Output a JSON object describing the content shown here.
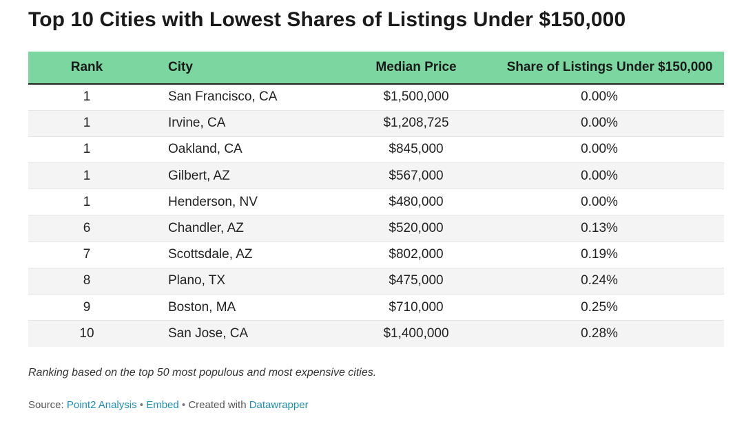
{
  "title": "Top 10 Cities with Lowest Shares of Listings Under $150,000",
  "columns": {
    "rank": "Rank",
    "city": "City",
    "price": "Median Price",
    "share": "Share of Listings Under $150,000"
  },
  "rows": [
    {
      "rank": "1",
      "city": "San Francisco, CA",
      "price": "$1,500,000",
      "share": "0.00%"
    },
    {
      "rank": "1",
      "city": "Irvine, CA",
      "price": "$1,208,725",
      "share": "0.00%"
    },
    {
      "rank": "1",
      "city": "Oakland, CA",
      "price": "$845,000",
      "share": "0.00%"
    },
    {
      "rank": "1",
      "city": "Gilbert, AZ",
      "price": "$567,000",
      "share": "0.00%"
    },
    {
      "rank": "1",
      "city": "Henderson, NV",
      "price": "$480,000",
      "share": "0.00%"
    },
    {
      "rank": "6",
      "city": "Chandler, AZ",
      "price": "$520,000",
      "share": "0.13%"
    },
    {
      "rank": "7",
      "city": "Scottsdale, AZ",
      "price": "$802,000",
      "share": "0.19%"
    },
    {
      "rank": "8",
      "city": "Plano, TX",
      "price": "$475,000",
      "share": "0.24%"
    },
    {
      "rank": "9",
      "city": "Boston, MA",
      "price": "$710,000",
      "share": "0.25%"
    },
    {
      "rank": "10",
      "city": "San Jose, CA",
      "price": "$1,400,000",
      "share": "0.28%"
    }
  ],
  "note": "Ranking based on the top 50 most populous and most expensive cities.",
  "footer": {
    "source_label": "Source: ",
    "source_link": "Point2 Analysis",
    "separator": " • ",
    "embed_link": "Embed",
    "created_label": "Created with ",
    "created_link": "Datawrapper"
  },
  "colors": {
    "header_bg": "#7bd6a0",
    "link": "#1f8fb5",
    "stripe": "#f4f4f4"
  },
  "chart_data": {
    "type": "table",
    "title": "Top 10 Cities with Lowest Shares of Listings Under $150,000",
    "columns": [
      "Rank",
      "City",
      "Median Price",
      "Share of Listings Under $150,000"
    ],
    "rows": [
      [
        1,
        "San Francisco, CA",
        1500000,
        0.0
      ],
      [
        1,
        "Irvine, CA",
        1208725,
        0.0
      ],
      [
        1,
        "Oakland, CA",
        845000,
        0.0
      ],
      [
        1,
        "Gilbert, AZ",
        567000,
        0.0
      ],
      [
        1,
        "Henderson, NV",
        480000,
        0.0
      ],
      [
        6,
        "Chandler, AZ",
        520000,
        0.13
      ],
      [
        7,
        "Scottsdale, AZ",
        802000,
        0.19
      ],
      [
        8,
        "Plano, TX",
        475000,
        0.24
      ],
      [
        9,
        "Boston, MA",
        710000,
        0.25
      ],
      [
        10,
        "San Jose, CA",
        1400000,
        0.28
      ]
    ]
  }
}
